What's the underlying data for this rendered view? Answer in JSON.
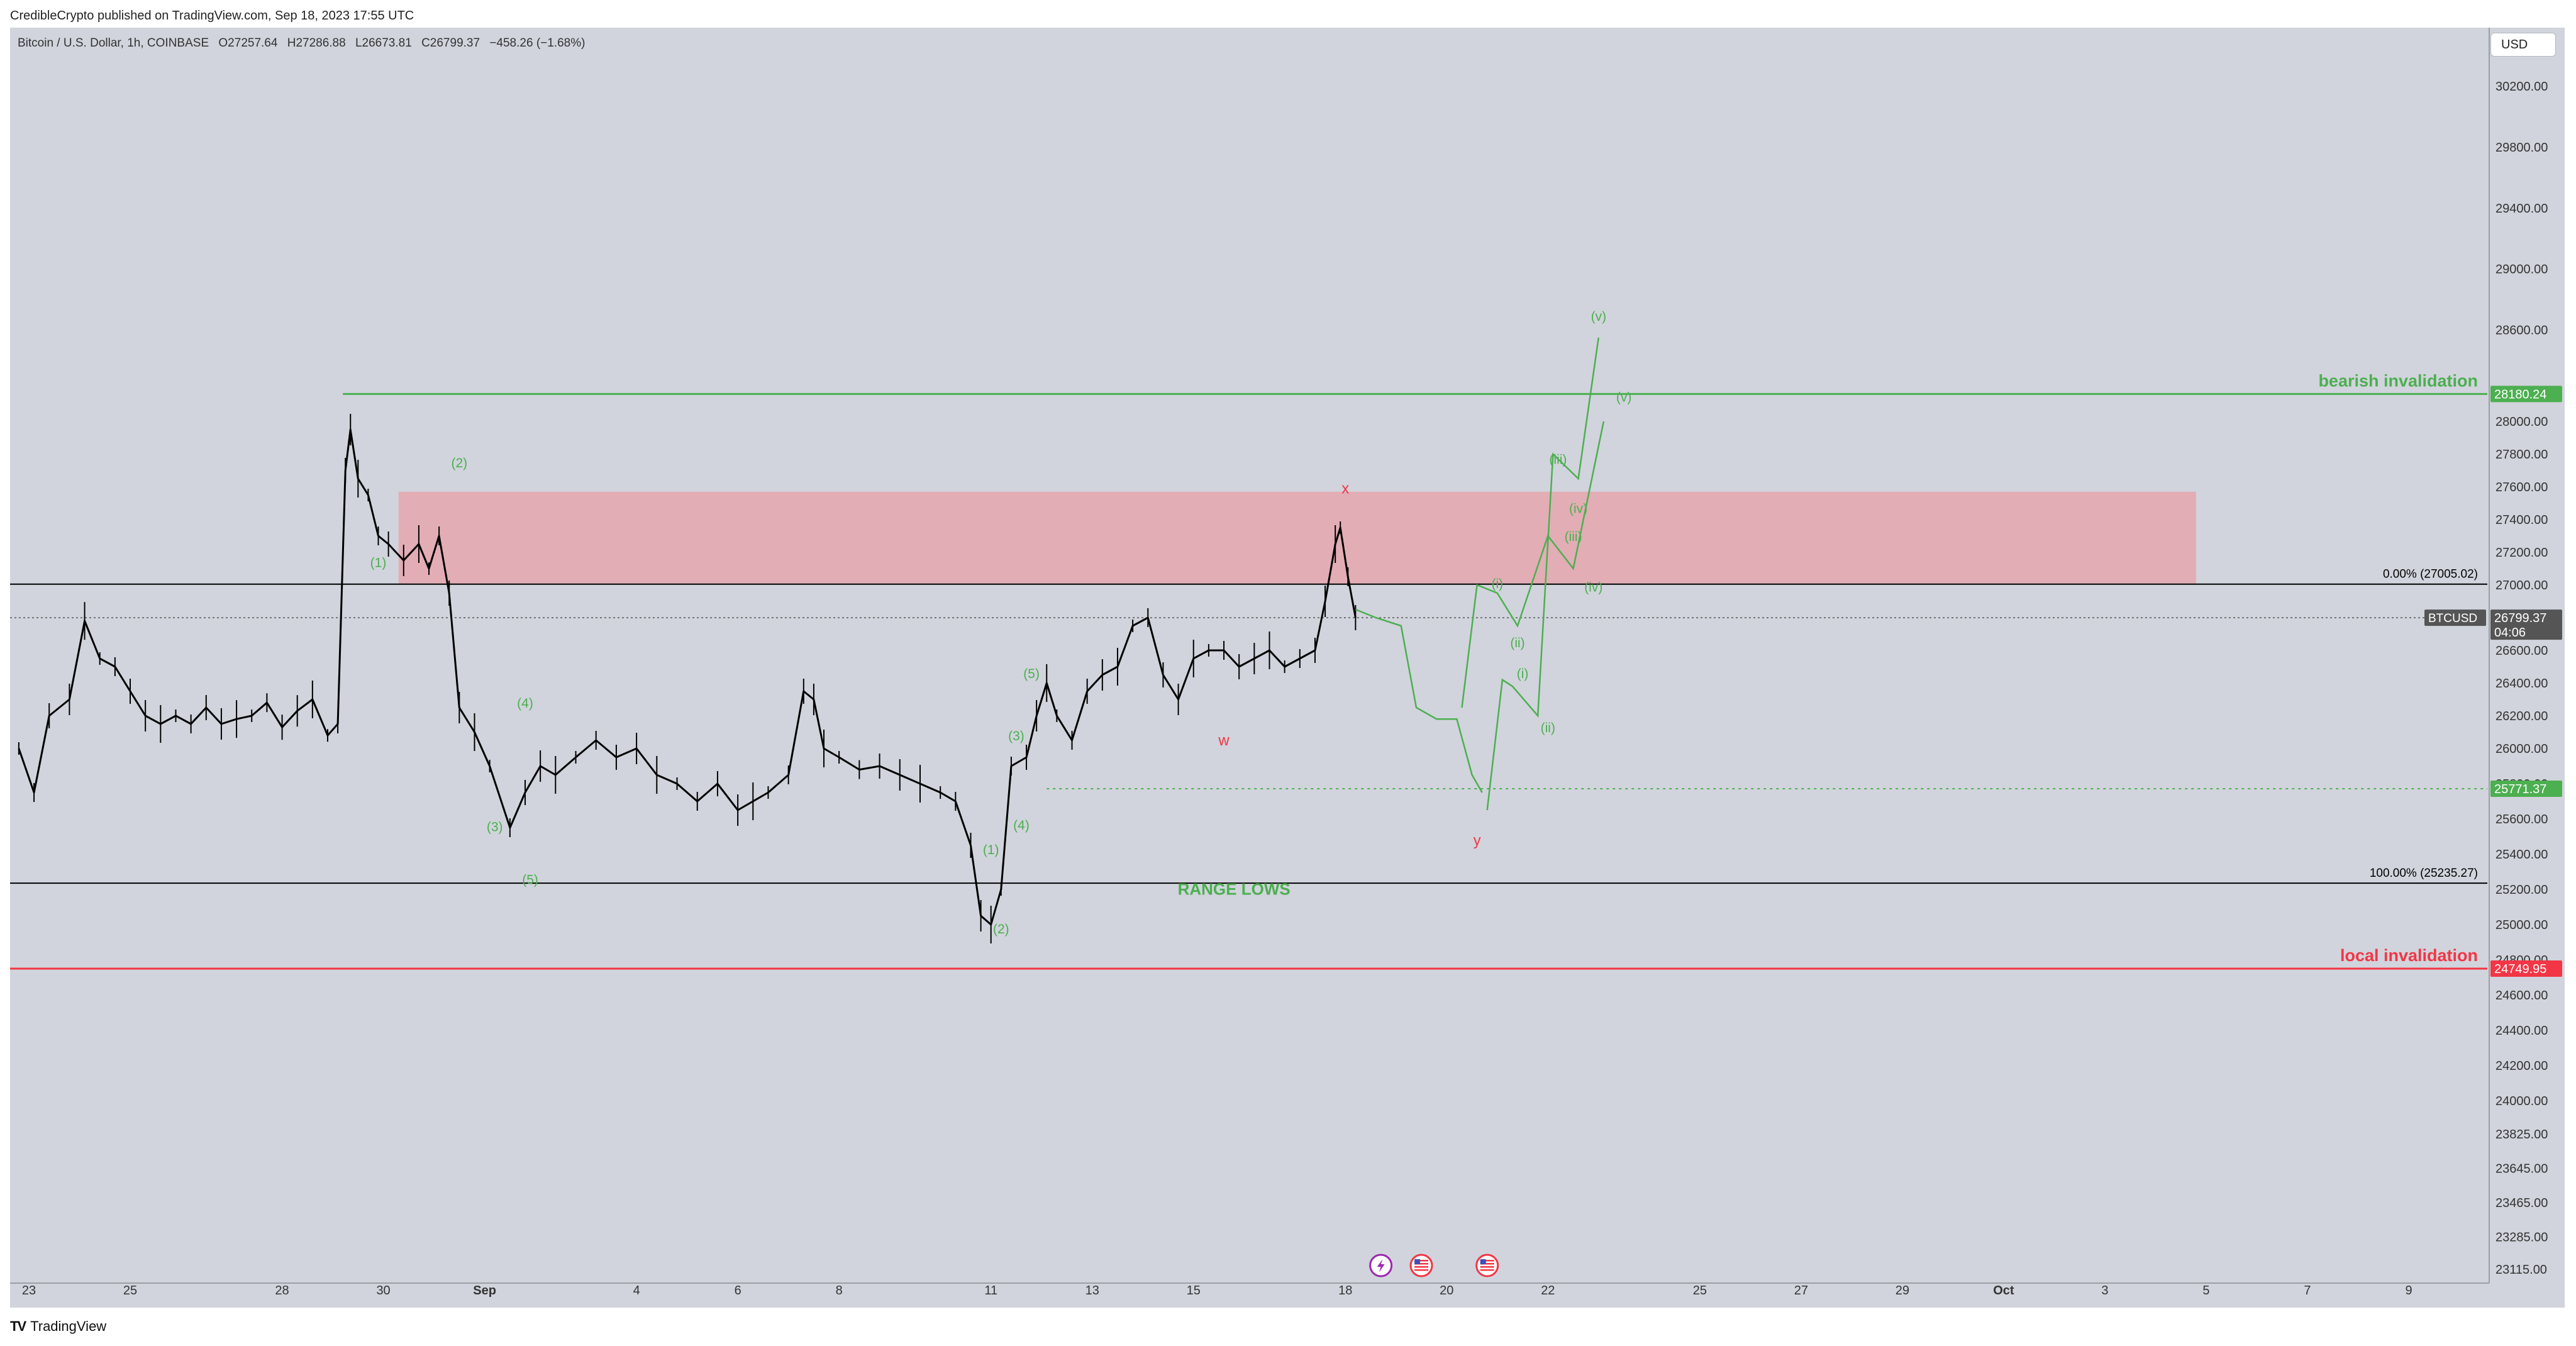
{
  "header": {
    "published": "CredibleCrypto published on TradingView.com, Sep 18, 2023 17:55 UTC"
  },
  "symbol": {
    "name": "Bitcoin / U.S. Dollar, 1h, COINBASE",
    "open": "O27257.64",
    "high": "H27286.88",
    "low": "L26673.81",
    "close": "C26799.37",
    "change": "−458.26 (−1.68%)"
  },
  "currency": "USD",
  "footer": {
    "brand": "TradingView",
    "logo": "TV"
  },
  "chart_data": {
    "type": "line",
    "title": "Bitcoin / U.S. Dollar, 1h, COINBASE",
    "xlabel": "",
    "ylabel": "",
    "grid": false,
    "colors": {
      "background": "#d1d4dc",
      "bullish": "#4caf50",
      "bearish": "#f23645",
      "zone": "#e8a0a8",
      "price": "#000000"
    },
    "y_scale": "log",
    "ylim": [
      23000,
      30300
    ],
    "y_ticks": [
      30200,
      29800,
      29400,
      29000,
      28600,
      28200,
      28000,
      27800,
      27600,
      27400,
      27200,
      27000,
      26800,
      26600,
      26400,
      26200,
      26000,
      25800,
      25600,
      25400,
      25200,
      25000,
      24800,
      24600,
      24400,
      24200,
      24000,
      23825,
      23645,
      23465,
      23285,
      23115
    ],
    "y_tick_labels": [
      "30200.00",
      "29800.00",
      "29400.00",
      "29000.00",
      "28600.00",
      "28200.00",
      "28000.00",
      "27800.00",
      "27600.00",
      "27400.00",
      "27200.00",
      "27000.00",
      "26800.00",
      "26600.00",
      "26400.00",
      "26200.00",
      "26000.00",
      "25800.00",
      "25600.00",
      "25400.00",
      "25200.00",
      "25000.00",
      "24800.00",
      "24600.00",
      "24400.00",
      "24200.00",
      "24000.00",
      "23825.00",
      "23645.00",
      "23465.00",
      "23285.00",
      "23115.00"
    ],
    "x_ticks": [
      {
        "day": 23,
        "label": "23"
      },
      {
        "day": 25,
        "label": "25"
      },
      {
        "day": 28,
        "label": "28"
      },
      {
        "day": 30,
        "label": "30"
      },
      {
        "day": 32,
        "label": "Sep"
      },
      {
        "day": 35,
        "label": "4"
      },
      {
        "day": 37,
        "label": "6"
      },
      {
        "day": 39,
        "label": "8"
      },
      {
        "day": 42,
        "label": "11"
      },
      {
        "day": 44,
        "label": "13"
      },
      {
        "day": 46,
        "label": "15"
      },
      {
        "day": 49,
        "label": "18"
      },
      {
        "day": 51,
        "label": "20"
      },
      {
        "day": 53,
        "label": "22"
      },
      {
        "day": 56,
        "label": "25"
      },
      {
        "day": 58,
        "label": "27"
      },
      {
        "day": 60,
        "label": "29"
      },
      {
        "day": 62,
        "label": "Oct"
      },
      {
        "day": 64,
        "label": "3"
      },
      {
        "day": 66,
        "label": "5"
      },
      {
        "day": 68,
        "label": "7"
      },
      {
        "day": 70,
        "label": "9"
      }
    ],
    "xlim": [
      22.8,
      71.4
    ],
    "series": [
      {
        "values": [
          [
            22.8,
            26000
          ],
          [
            23.1,
            25750
          ],
          [
            23.4,
            26200
          ],
          [
            23.8,
            26300
          ],
          [
            24.1,
            26780
          ],
          [
            24.4,
            26550
          ],
          [
            24.7,
            26500
          ],
          [
            25.0,
            26350
          ],
          [
            25.3,
            26200
          ],
          [
            25.6,
            26150
          ],
          [
            25.9,
            26200
          ],
          [
            26.2,
            26150
          ],
          [
            26.5,
            26250
          ],
          [
            26.8,
            26150
          ],
          [
            27.1,
            26180
          ],
          [
            27.4,
            26200
          ],
          [
            27.7,
            26280
          ],
          [
            28.0,
            26130
          ],
          [
            28.3,
            26230
          ],
          [
            28.6,
            26300
          ],
          [
            28.9,
            26080
          ],
          [
            29.1,
            26150
          ],
          [
            29.25,
            27700
          ],
          [
            29.35,
            27950
          ],
          [
            29.5,
            27650
          ],
          [
            29.7,
            27550
          ],
          [
            29.9,
            27300
          ],
          [
            30.1,
            27250
          ],
          [
            30.4,
            27150
          ],
          [
            30.7,
            27250
          ],
          [
            30.9,
            27100
          ],
          [
            31.1,
            27300
          ],
          [
            31.3,
            26950
          ],
          [
            31.5,
            26250
          ],
          [
            31.8,
            26100
          ],
          [
            32.1,
            25900
          ],
          [
            32.5,
            25550
          ],
          [
            32.8,
            25750
          ],
          [
            33.1,
            25900
          ],
          [
            33.4,
            25850
          ],
          [
            33.8,
            25950
          ],
          [
            34.2,
            26050
          ],
          [
            34.6,
            25950
          ],
          [
            35.0,
            26000
          ],
          [
            35.4,
            25850
          ],
          [
            35.8,
            25800
          ],
          [
            36.2,
            25700
          ],
          [
            36.6,
            25800
          ],
          [
            37.0,
            25650
          ],
          [
            37.3,
            25700
          ],
          [
            37.6,
            25750
          ],
          [
            38.0,
            25850
          ],
          [
            38.3,
            26350
          ],
          [
            38.5,
            26300
          ],
          [
            38.7,
            26000
          ],
          [
            39.0,
            25950
          ],
          [
            39.4,
            25880
          ],
          [
            39.8,
            25900
          ],
          [
            40.2,
            25850
          ],
          [
            40.6,
            25800
          ],
          [
            41.0,
            25750
          ],
          [
            41.3,
            25700
          ],
          [
            41.6,
            25450
          ],
          [
            41.8,
            25050
          ],
          [
            42.0,
            25000
          ],
          [
            42.2,
            25200
          ],
          [
            42.4,
            25900
          ],
          [
            42.7,
            25950
          ],
          [
            42.9,
            26200
          ],
          [
            43.1,
            26400
          ],
          [
            43.3,
            26200
          ],
          [
            43.6,
            26050
          ],
          [
            43.9,
            26350
          ],
          [
            44.2,
            26450
          ],
          [
            44.5,
            26500
          ],
          [
            44.8,
            26750
          ],
          [
            45.1,
            26800
          ],
          [
            45.4,
            26450
          ],
          [
            45.7,
            26300
          ],
          [
            46.0,
            26550
          ],
          [
            46.3,
            26600
          ],
          [
            46.6,
            26600
          ],
          [
            46.9,
            26500
          ],
          [
            47.2,
            26550
          ],
          [
            47.5,
            26600
          ],
          [
            47.8,
            26500
          ],
          [
            48.1,
            26550
          ],
          [
            48.4,
            26600
          ],
          [
            48.6,
            26900
          ],
          [
            48.8,
            27250
          ],
          [
            48.9,
            27350
          ],
          [
            49.05,
            27050
          ],
          [
            49.2,
            26800
          ]
        ]
      }
    ],
    "projection_path": [
      [
        49.2,
        26850
      ],
      [
        49.6,
        26800
      ],
      [
        50.1,
        26750
      ],
      [
        50.4,
        26250
      ],
      [
        50.8,
        26180
      ],
      [
        51.2,
        26180
      ],
      [
        51.5,
        25850
      ],
      [
        51.7,
        25750
      ]
    ],
    "wave_projection_path": [
      [
        51.8,
        25650
      ],
      [
        52.1,
        26420
      ],
      [
        52.3,
        26380
      ],
      [
        52.8,
        26200
      ],
      [
        53.1,
        27800
      ],
      [
        53.6,
        27650
      ],
      [
        54.0,
        28550
      ]
    ],
    "wave_projection_path_2": [
      [
        51.3,
        26250
      ],
      [
        51.6,
        27000
      ],
      [
        52.0,
        26950
      ],
      [
        52.4,
        26750
      ],
      [
        53.0,
        27300
      ],
      [
        53.5,
        27100
      ],
      [
        54.1,
        28000
      ]
    ],
    "levels": [
      {
        "name": "bearish_invalidation",
        "value": 28180.24,
        "label": "bearish invalidation",
        "price_tag": "28180.24",
        "color": "#4caf50"
      },
      {
        "name": "fib_0",
        "value": 27005.02,
        "label": "0.00% (27005.02)",
        "color": "#000000"
      },
      {
        "name": "current_price",
        "value": 26799.37,
        "price_tag": "26799.37",
        "symbol_tag": "BTCUSD",
        "time_tag": "04:06",
        "color": "#555555"
      },
      {
        "name": "green_dotted",
        "value": 25771.37,
        "price_tag": "25771.37",
        "color": "#4caf50"
      },
      {
        "name": "fib_100",
        "value": 25235.27,
        "label": "100.00% (25235.27)",
        "color": "#000000"
      },
      {
        "name": "local_invalidation",
        "value": 24749.95,
        "label": "local invalidation",
        "price_tag": "24749.95",
        "color": "#f23645"
      }
    ],
    "zone": {
      "from_day": 30.3,
      "to_day": 65.8,
      "low": 27005.02,
      "high": 27570
    },
    "annotations": [
      {
        "text": "(1)",
        "day": 29.9,
        "price": 27110,
        "color": "#4caf50"
      },
      {
        "text": "(2)",
        "day": 31.5,
        "price": 27720,
        "color": "#4caf50"
      },
      {
        "text": "(3)",
        "day": 32.2,
        "price": 25530,
        "color": "#4caf50"
      },
      {
        "text": "(4)",
        "day": 32.8,
        "price": 26250,
        "color": "#4caf50"
      },
      {
        "text": "(5)",
        "day": 32.9,
        "price": 25230,
        "color": "#4caf50"
      },
      {
        "text": "(1)",
        "day": 42.0,
        "price": 25400,
        "color": "#4caf50"
      },
      {
        "text": "(2)",
        "day": 42.2,
        "price": 24950,
        "color": "#4caf50"
      },
      {
        "text": "(3)",
        "day": 42.5,
        "price": 26050,
        "color": "#4caf50"
      },
      {
        "text": "(4)",
        "day": 42.6,
        "price": 25540,
        "color": "#4caf50"
      },
      {
        "text": "(5)",
        "day": 42.8,
        "price": 26430,
        "color": "#4caf50"
      },
      {
        "text": "RANGE LOWS",
        "day": 46.8,
        "price": 25170,
        "color": "#4caf50",
        "size": "large"
      },
      {
        "text": "w",
        "day": 46.6,
        "price": 26020,
        "color": "#f23645"
      },
      {
        "text": "x",
        "day": 49.0,
        "price": 27560,
        "color": "#f23645"
      },
      {
        "text": "y",
        "day": 51.6,
        "price": 25450,
        "color": "#f23645"
      },
      {
        "text": "(i)",
        "day": 52.0,
        "price": 26980,
        "color": "#4caf50"
      },
      {
        "text": "(ii)",
        "day": 52.4,
        "price": 26620,
        "color": "#4caf50"
      },
      {
        "text": "(iii)",
        "day": 53.2,
        "price": 27740,
        "color": "#4caf50"
      },
      {
        "text": "(iv)",
        "day": 53.6,
        "price": 27440,
        "color": "#4caf50"
      },
      {
        "text": "(v)",
        "day": 54.0,
        "price": 28660,
        "color": "#4caf50"
      },
      {
        "text": "(i)",
        "day": 52.5,
        "price": 26430,
        "color": "#4caf50"
      },
      {
        "text": "(ii)",
        "day": 53.0,
        "price": 26100,
        "color": "#4caf50"
      },
      {
        "text": "(iii)",
        "day": 53.5,
        "price": 27270,
        "color": "#4caf50"
      },
      {
        "text": "(iv)",
        "day": 53.9,
        "price": 26960,
        "color": "#4caf50"
      },
      {
        "text": "(v)",
        "day": 54.5,
        "price": 28130,
        "color": "#4caf50"
      }
    ],
    "event_icons": [
      {
        "day": 49.7,
        "icon": "lightning-icon",
        "color": "#9c27b0"
      },
      {
        "day": 50.5,
        "icon": "us-flag-icon",
        "color": "#f23645"
      },
      {
        "day": 51.8,
        "icon": "us-flag-icon",
        "color": "#f23645"
      }
    ]
  }
}
